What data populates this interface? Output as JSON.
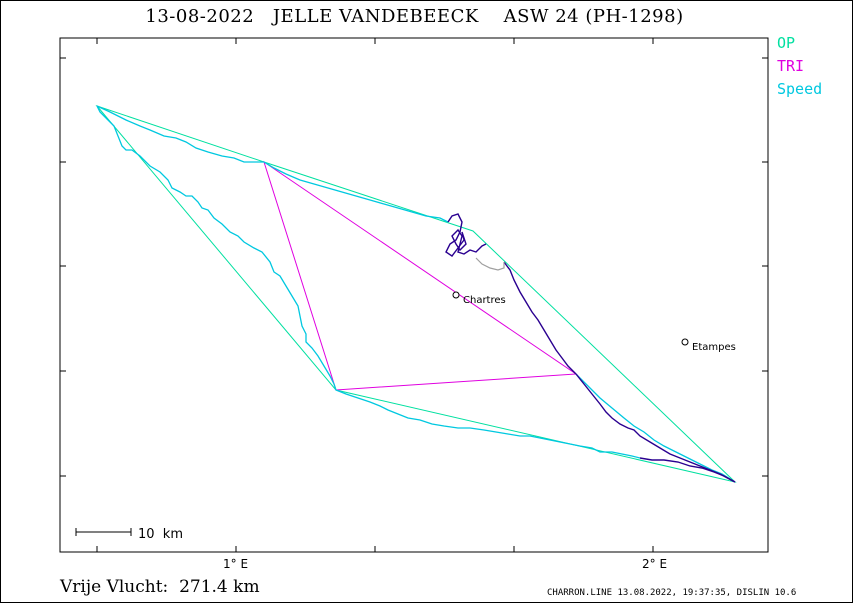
{
  "title": "13-08-2022   JELLE VANDEBEECK    ASW 24 (PH-1298)",
  "legend": {
    "op": {
      "label": "OP",
      "color": "#00e0a0"
    },
    "tri": {
      "label": "TRI",
      "color": "#e000e0"
    },
    "speed": {
      "label": "Speed",
      "color": "#00c8e0"
    }
  },
  "places": [
    {
      "name": "Chartres"
    },
    {
      "name": "Etampes"
    }
  ],
  "axis": {
    "x_ticks": [
      "1° E",
      "2° E"
    ]
  },
  "scale_bar": {
    "label": "10  km"
  },
  "distance_text": "Vrije Vlucht:  271.4 km",
  "footer_text": "CHARRON.LINE 13.08.2022, 19:37:35, DISLIN 10.6",
  "colors": {
    "track_fast": "#00c8e0",
    "track_slow": "#2a0090",
    "track_gap": "#a0a0a0",
    "op_line": "#00e0a0",
    "tri_line": "#e000e0"
  }
}
